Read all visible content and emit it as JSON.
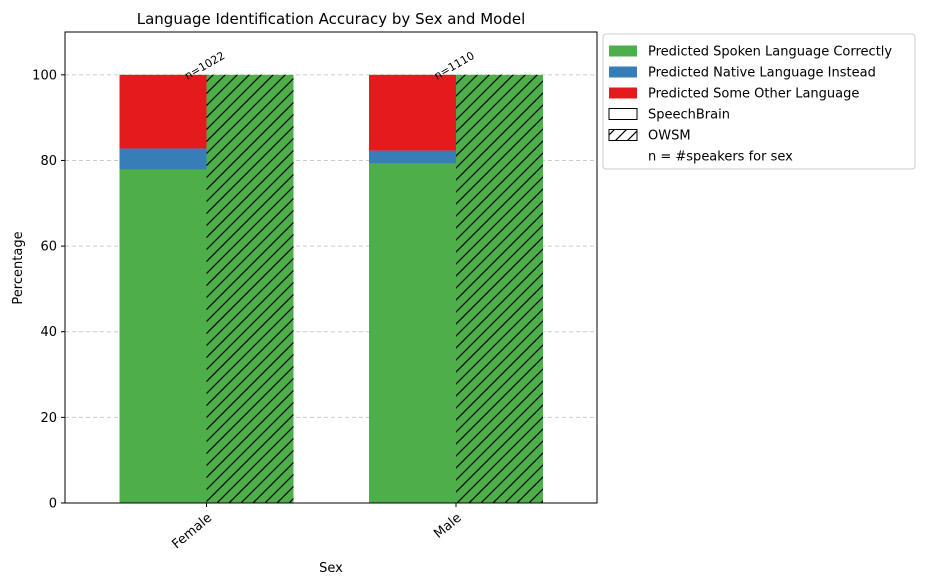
{
  "chart_data": {
    "type": "bar",
    "title": "Language Identification Accuracy by Sex and Model",
    "xlabel": "Sex",
    "ylabel": "Percentage",
    "ylim": [
      0,
      110
    ],
    "yticks": [
      0,
      20,
      40,
      60,
      80,
      100
    ],
    "grid": "horizontal dashed",
    "legend_position": "outside right, top",
    "categories": [
      "Female",
      "Male"
    ],
    "sample_sizes": [
      "n=1022",
      "n=1110"
    ],
    "series": [
      {
        "name": "Predicted Spoken Language Correctly",
        "color": "#4daf4a"
      },
      {
        "name": "Predicted Native Language Instead",
        "color": "#377eb8"
      },
      {
        "name": "Predicted Some Other Language",
        "color": "#e41a1c"
      }
    ],
    "models": [
      {
        "name": "SpeechBrain",
        "hatch": "none",
        "values": {
          "Female": [
            77.8,
            5.0,
            17.2
          ],
          "Male": [
            79.3,
            3.0,
            17.7
          ]
        }
      },
      {
        "name": "OWSM",
        "hatch": "diagonal",
        "values": {
          "Female": [
            100,
            0,
            0
          ],
          "Male": [
            100,
            0,
            0
          ]
        }
      }
    ],
    "legend_note": "n = #speakers for sex"
  }
}
